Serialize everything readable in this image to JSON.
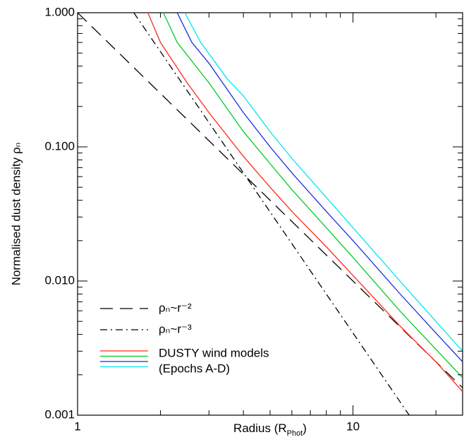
{
  "chart_data": {
    "type": "line",
    "x_label": {
      "text": "Radius (R",
      "sub": "Phot",
      "end": ")"
    },
    "y_label": "Normalised dust density ρₙ",
    "log_x": true,
    "log_y": true,
    "xlim": [
      1,
      25
    ],
    "ylim": [
      0.001,
      1
    ],
    "xticks": [
      1,
      10
    ],
    "yticks": [
      {
        "value": 1,
        "label": "1.000"
      },
      {
        "value": 0.1,
        "label": "0.100"
      },
      {
        "value": 0.01,
        "label": "0.010"
      },
      {
        "value": 0.001,
        "label": "0.001"
      }
    ],
    "xminorticks": [
      2,
      3,
      4,
      5,
      6,
      7,
      8,
      9,
      20
    ],
    "yminorticks": [
      0.002,
      0.003,
      0.004,
      0.005,
      0.006,
      0.007,
      0.008,
      0.009,
      0.02,
      0.03,
      0.04,
      0.05,
      0.06,
      0.07,
      0.08,
      0.09,
      0.2,
      0.3,
      0.4,
      0.5,
      0.6,
      0.7,
      0.8,
      0.9
    ],
    "legend_position": "lower left",
    "legend_group_text": [
      "DUSTY wind models",
      "(Epochs A-D)"
    ],
    "series": [
      {
        "name": "ρₙ~r⁻²",
        "color": "#000000",
        "dash": "dash",
        "x": [
          1,
          25
        ],
        "values": [
          1,
          0.0016
        ]
      },
      {
        "name": "ρₙ~r⁻³",
        "color": "#000000",
        "dash": "dashdot",
        "x": [
          1.6,
          16
        ],
        "values": [
          1,
          0.001
        ]
      },
      {
        "color": "#ff2a1a",
        "dash": "solid",
        "legend_group": true,
        "x": [
          1.8,
          2,
          2.5,
          3,
          4,
          5,
          6,
          8,
          10,
          15,
          20,
          25
        ],
        "values": [
          1,
          0.6,
          0.3,
          0.18,
          0.085,
          0.05,
          0.033,
          0.018,
          0.011,
          0.0045,
          0.0025,
          0.0015
        ]
      },
      {
        "color": "#00cc22",
        "dash": "solid",
        "legend_group": true,
        "x": [
          2.05,
          2.3,
          3,
          4,
          5,
          6,
          8,
          10,
          15,
          20,
          25
        ],
        "values": [
          1,
          0.6,
          0.3,
          0.13,
          0.075,
          0.048,
          0.025,
          0.015,
          0.0058,
          0.0031,
          0.0019
        ]
      },
      {
        "color": "#1a2fe0",
        "dash": "solid",
        "legend_group": true,
        "x": [
          2.3,
          2.6,
          3,
          4,
          5,
          6,
          8,
          10,
          15,
          20,
          25
        ],
        "values": [
          1,
          0.6,
          0.42,
          0.18,
          0.1,
          0.064,
          0.033,
          0.02,
          0.0078,
          0.0041,
          0.0025
        ]
      },
      {
        "color": "#00e5ee",
        "dash": "solid",
        "legend_group": true,
        "x": [
          2.45,
          2.8,
          3.5,
          4,
          5,
          6,
          8,
          10,
          15,
          20,
          25
        ],
        "values": [
          1,
          0.6,
          0.32,
          0.24,
          0.13,
          0.082,
          0.042,
          0.025,
          0.0097,
          0.005,
          0.003
        ]
      }
    ]
  }
}
